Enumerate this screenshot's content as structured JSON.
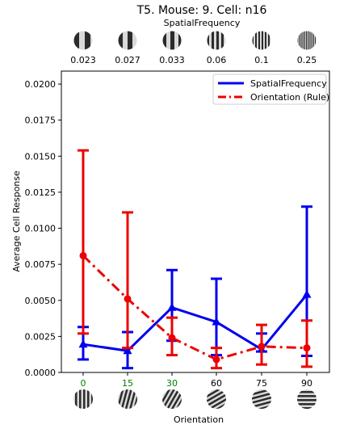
{
  "chart_data": {
    "type": "line",
    "title": "T5. Mouse: 9. Cell: n16",
    "top_axis_label": "SpatialFrequency",
    "top_ticks": [
      "0.023",
      "0.027",
      "0.033",
      "0.06",
      "0.1",
      "0.25"
    ],
    "xlabel": "Orientation",
    "ylabel": "Average Cell Response",
    "categories": [
      "0",
      "15",
      "30",
      "60",
      "75",
      "90"
    ],
    "ylim": [
      0,
      0.0209
    ],
    "yticks": [
      "0.0000",
      "0.0025",
      "0.0050",
      "0.0075",
      "0.0100",
      "0.0125",
      "0.0150",
      "0.0175",
      "0.0200"
    ],
    "legend": {
      "placement": "top-right"
    },
    "grid": false,
    "colors": {
      "spatial": "#0000ee",
      "orientation": "#ee0000",
      "green_tick": "#008000",
      "axis": "#000000"
    },
    "series": [
      {
        "name": "SpatialFrequency",
        "style": "solid",
        "marker": "triangle",
        "values": [
          0.00195,
          0.0015,
          0.0045,
          0.0035,
          0.0016,
          0.0054
        ],
        "err_low": [
          0.0009,
          0.0003,
          0.0022,
          0.0012,
          0.00145,
          0.00115
        ],
        "err_high": [
          0.00315,
          0.0028,
          0.0071,
          0.0065,
          0.0027,
          0.0115
        ]
      },
      {
        "name": "Orientation (Rule)",
        "style": "dashdot",
        "marker": "circle",
        "values": [
          0.0081,
          0.0051,
          0.0024,
          0.0009,
          0.0018,
          0.0017
        ],
        "err_low": [
          0.0027,
          0.0017,
          0.0012,
          0.0003,
          0.00055,
          0.0004
        ],
        "err_high": [
          0.0154,
          0.0111,
          0.0038,
          0.0017,
          0.0033,
          0.0036
        ]
      }
    ]
  }
}
